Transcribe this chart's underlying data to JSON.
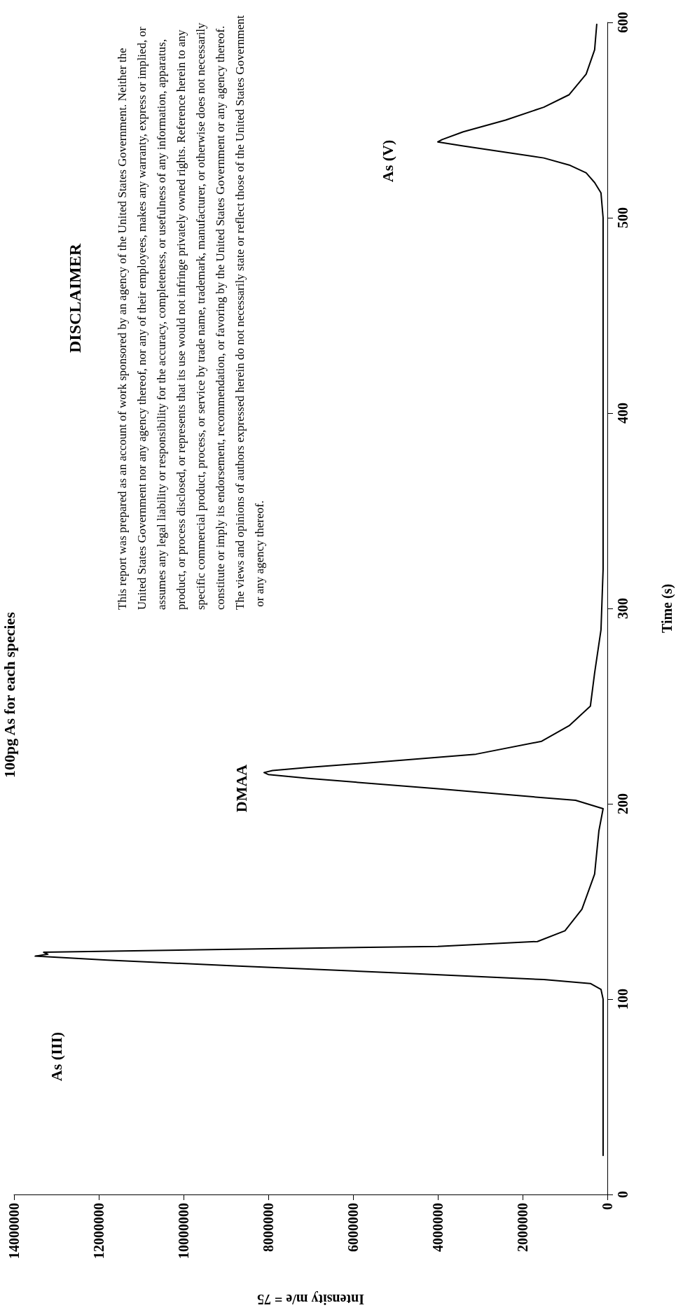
{
  "chart_data": {
    "type": "line",
    "title": "100pg As for each species",
    "xlabel": "Intensity m/e = 75",
    "ylabel": "Time (s)",
    "x": [
      100000,
      100000,
      100000,
      100000,
      100000,
      150000,
      400000,
      1500000,
      4500000,
      8800000,
      11800000,
      13500000,
      13200000,
      13300000,
      8800000,
      4000000,
      1650000,
      1000000,
      600000,
      300000,
      200000,
      100000,
      750000,
      2000000,
      3900000,
      7050000,
      8000000,
      8100000,
      7900000,
      7050000,
      5000000,
      3100000,
      1550000,
      900000,
      400000,
      300000,
      150000,
      100000,
      100000,
      100000,
      100000,
      100000,
      150000,
      300000,
      500000,
      900000,
      1500000,
      2400000,
      3400000,
      4000000,
      3900000,
      3400000,
      2400000,
      1500000,
      900000,
      500000,
      300000,
      250000
    ],
    "series": [
      {
        "color": "#000000",
        "values": [
          20,
          40,
          60,
          80,
          100,
          105,
          108,
          110,
          113,
          117,
          120,
          122,
          123,
          124,
          125.5,
          127,
          129.5,
          135,
          146,
          164,
          186,
          197.5,
          201.8,
          204,
          207.5,
          213,
          215,
          216,
          217,
          218.6,
          222,
          225.4,
          232,
          240,
          250,
          267,
          289,
          320,
          360,
          400,
          450,
          500,
          512.7,
          518,
          523,
          527,
          530.6,
          533.5,
          536.7,
          538.8,
          540,
          544,
          550,
          556.6,
          563,
          573.5,
          586,
          599
        ]
      }
    ],
    "xlim": [
      14000000,
      0
    ],
    "xticks": [
      0,
      2000000,
      4000000,
      6000000,
      8000000,
      10000000,
      12000000,
      14000000
    ],
    "ylim": [
      0,
      600
    ],
    "yticks": [
      0,
      100,
      200,
      300,
      400,
      500,
      600
    ],
    "grid": false,
    "marker": "none",
    "line_style": "solid",
    "annotations": [
      "DISCLAIMER",
      "This report was prepared as an account of work sponsored by an agency of the United States Government. Neither the United States Government nor any agency thereof, nor any of their employees, makes any warranty, express or implied, or assumes any legal liability or responsibility for the accuracy, completeness, or usefulness of any information, apparatus, product, or process disclosed, or represents that its use would not infringe privately owned rights. Reference herein to any specific commercial product, process, or service by trade name, trademark, manufacturer, or otherwise does not necessarily constitute or imply its endorsement, recommendation, or favoring by the United States Government or any agency thereof. The views and opinions of authors expressed herein do not necessarily state or reflect those of the United States Government or any agency thereof.",
      "As (III)",
      "DMAA",
      "As (V)"
    ]
  }
}
